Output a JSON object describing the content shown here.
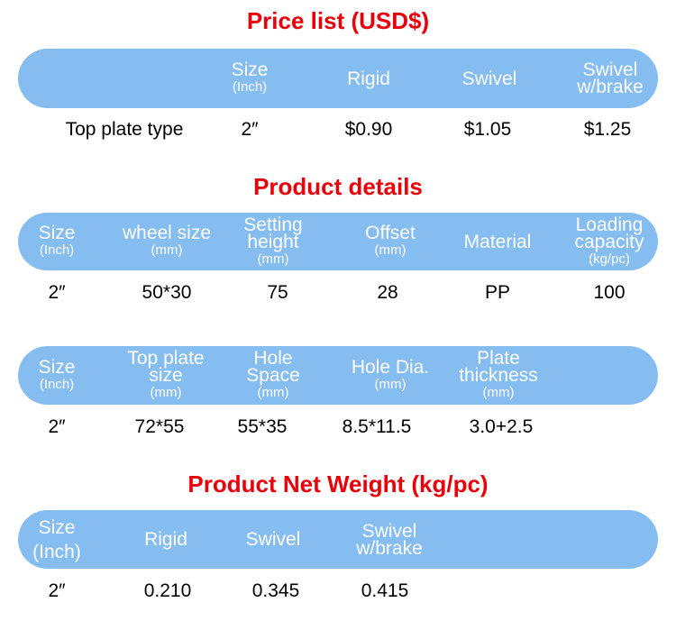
{
  "bar_color": "#85bdf0",
  "title_color": "#e8000b",
  "price": {
    "title": "Price list (USD$)",
    "headers": [
      {
        "main": "Size",
        "sub": "(Inch)"
      },
      {
        "main": "Rigid"
      },
      {
        "main": "Swivel"
      },
      {
        "main": "Swivel",
        "main2": "w/brake"
      }
    ],
    "row": [
      "Top plate type",
      "2″",
      "$0.90",
      "$1.05",
      "$1.25"
    ]
  },
  "details": {
    "title": "Product details",
    "headers": [
      {
        "main": "Size",
        "sub": "(Inch)"
      },
      {
        "main": "wheel size",
        "sub": "(mm)"
      },
      {
        "main": "Setting",
        "main2": "height",
        "sub": "(mm)"
      },
      {
        "main": "Offset",
        "sub": "(mm)"
      },
      {
        "main": "Material"
      },
      {
        "main": "Loading",
        "main2": "capacity",
        "sub": "(kg/pc)"
      }
    ],
    "row": [
      "2″",
      "50*30",
      "75",
      "28",
      "PP",
      "100"
    ]
  },
  "plate": {
    "headers": [
      {
        "main": "Size",
        "sub": "(Inch)"
      },
      {
        "main": "Top plate",
        "main2": "size",
        "sub": "(mm)"
      },
      {
        "main": "Hole",
        "main2": "Space",
        "sub": "(mm)"
      },
      {
        "main": "Hole Dia.",
        "sub": "(mm)"
      },
      {
        "main": "Plate",
        "main2": "thickness",
        "sub": "(mm)"
      }
    ],
    "row": [
      "2″",
      "72*55",
      "55*35",
      "8.5*11.5",
      "3.0+2.5"
    ]
  },
  "weight": {
    "title": "Product Net Weight (kg/pc)",
    "headers": [
      {
        "main": "Size",
        "main2": "(Inch)"
      },
      {
        "main": "Rigid"
      },
      {
        "main": "Swivel"
      },
      {
        "main": "Swivel",
        "main2": "w/brake"
      }
    ],
    "row": [
      "2″",
      "0.210",
      "0.345",
      "0.415"
    ]
  }
}
